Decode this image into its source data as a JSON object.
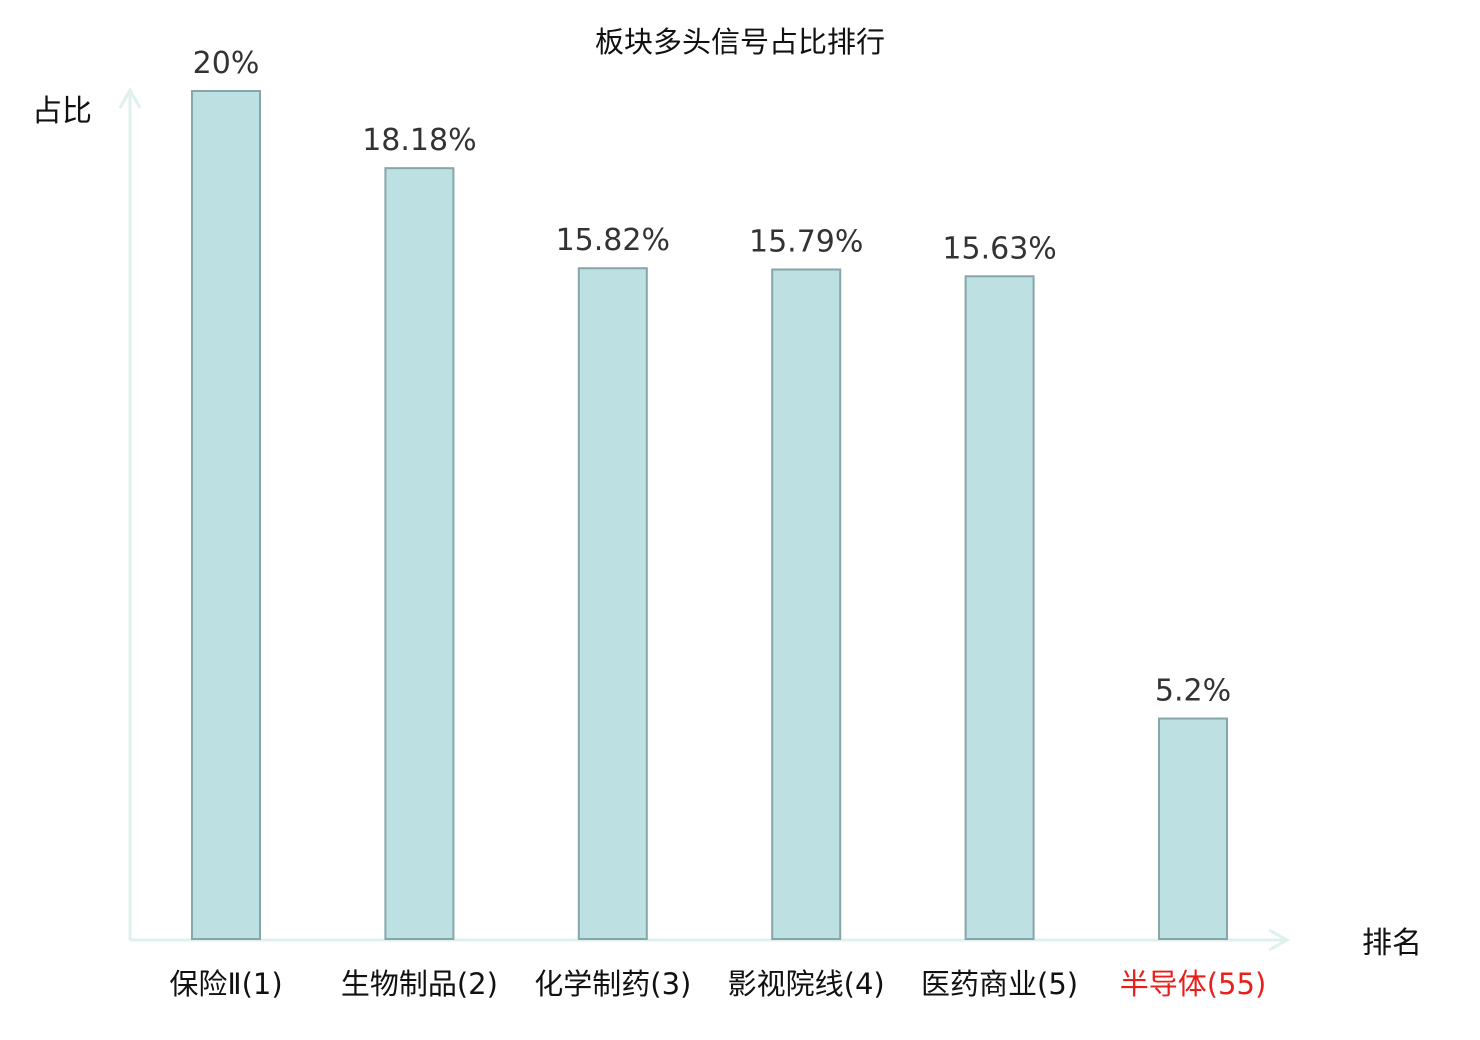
{
  "chart_data": {
    "type": "bar",
    "title": "板块多头信号占比排行",
    "ylabel": "占比",
    "xlabel": "排名",
    "categories": [
      "保险Ⅱ(1)",
      "生物制品(2)",
      "化学制药(3)",
      "影视院线(4)",
      "医药商业(5)",
      "半导体(55)"
    ],
    "values": [
      20,
      18.18,
      15.82,
      15.79,
      15.63,
      5.2
    ],
    "value_labels": [
      "20%",
      "18.18%",
      "15.82%",
      "15.79%",
      "15.63%",
      "5.2%"
    ],
    "ylim": [
      0,
      20
    ],
    "unit": "%",
    "grid": false,
    "legend": "none",
    "highlight_category": "半导体(55)",
    "colors": {
      "bar_fill": "#bde0e2",
      "bar_stroke": "#86a6a8",
      "axis": "#dff1ee",
      "highlight_text": "#e8201b",
      "text": "#111111",
      "value_text": "#333333"
    }
  }
}
